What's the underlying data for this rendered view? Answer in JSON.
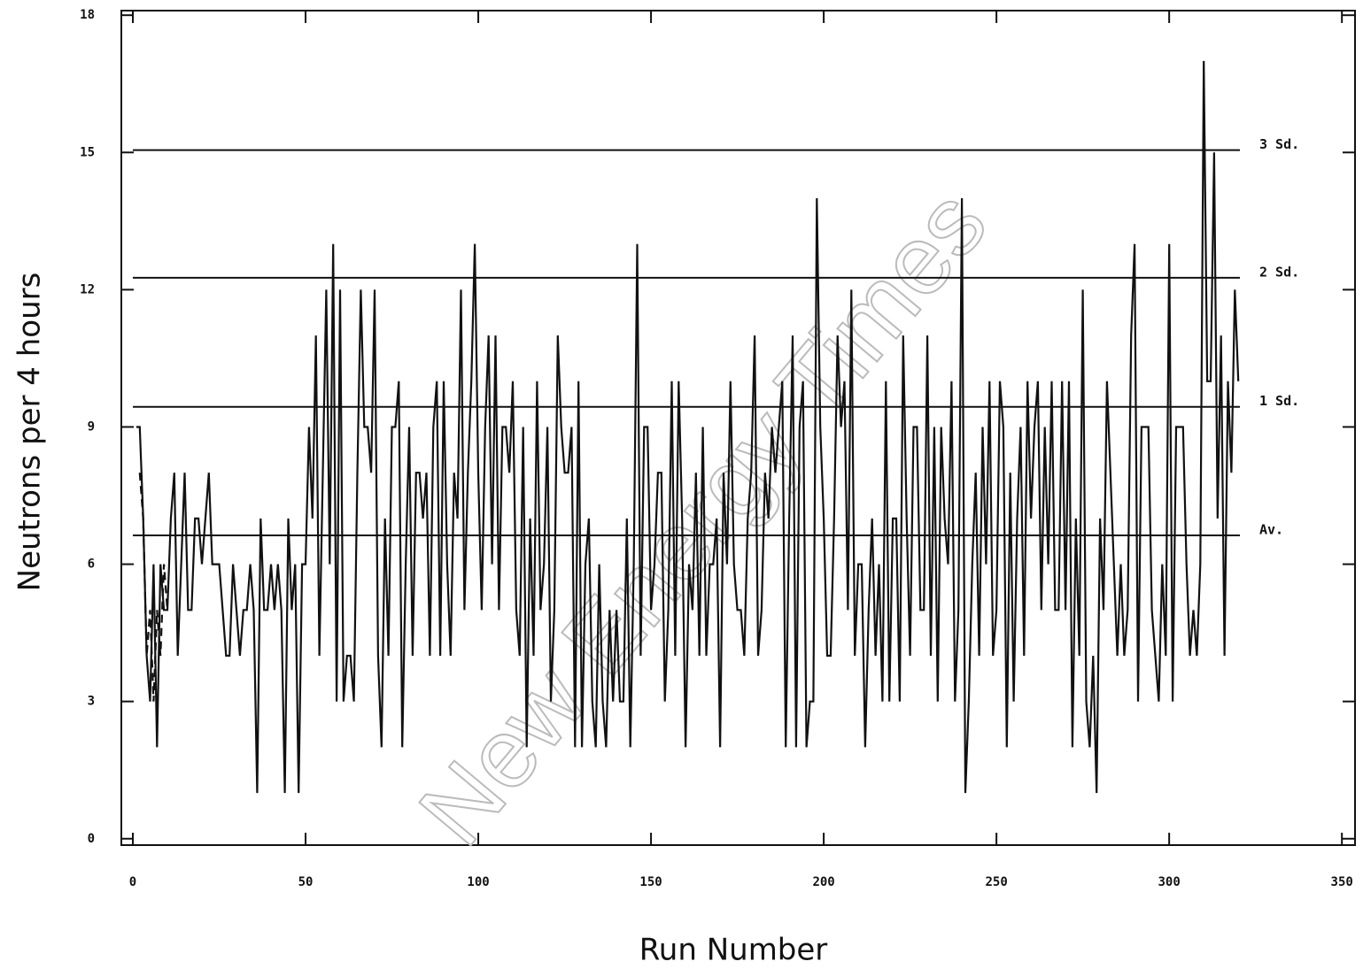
{
  "chart_data": {
    "type": "line",
    "xlabel": "Run Number",
    "ylabel": "Neutrons per 4 hours",
    "watermark": "New Energy Times",
    "xlim": [
      -3.33,
      353.8
    ],
    "ylim": [
      -0.14,
      18.1
    ],
    "xticks": [
      0,
      50,
      100,
      150,
      200,
      250,
      300,
      350
    ],
    "yticks": [
      0,
      3,
      6,
      9,
      12,
      15,
      18
    ],
    "hlines": [
      {
        "value": 15.05,
        "label": "3 Sd."
      },
      {
        "value": 12.26,
        "label": "2 Sd."
      },
      {
        "value": 9.44,
        "label": "1 Sd."
      },
      {
        "value": 6.63,
        "label": "Av."
      }
    ],
    "series": [
      {
        "color": "#111",
        "dashed": true,
        "x": [
          2,
          3,
          4,
          5,
          6,
          7,
          8,
          9,
          10
        ],
        "values": [
          8,
          7,
          4,
          5,
          3,
          5,
          4,
          6,
          5
        ]
      },
      {
        "color": "#111",
        "dashed": false,
        "x": [
          1,
          2,
          3,
          4,
          5,
          6,
          7,
          8,
          9,
          10,
          11,
          12,
          13,
          14,
          15,
          16,
          17,
          18,
          19,
          20,
          21,
          22,
          23,
          24,
          25,
          26,
          27,
          28,
          29,
          30,
          31,
          32,
          33,
          34,
          35,
          36,
          37,
          38,
          39,
          40,
          41,
          42,
          43,
          44,
          45,
          46,
          47,
          48,
          49,
          50,
          51,
          52,
          53,
          54,
          55,
          56,
          57,
          58,
          59,
          60,
          61,
          62,
          63,
          64,
          65,
          66,
          67,
          68,
          69,
          70,
          71,
          72,
          73,
          74,
          75,
          76,
          77,
          78,
          79,
          80,
          81,
          82,
          83,
          84,
          85,
          86,
          87,
          88,
          89,
          90,
          91,
          92,
          93,
          94,
          95,
          96,
          97,
          98,
          99,
          100,
          101,
          102,
          103,
          104,
          105,
          106,
          107,
          108,
          109,
          110,
          111,
          112,
          113,
          114,
          115,
          116,
          117,
          118,
          119,
          120,
          121,
          122,
          123,
          124,
          125,
          126,
          127,
          128,
          129,
          130,
          131,
          132,
          133,
          134,
          135,
          136,
          137,
          138,
          139,
          140,
          141,
          142,
          143,
          144,
          145,
          146,
          147,
          148,
          149,
          150,
          151,
          152,
          153,
          154,
          155,
          156,
          157,
          158,
          159,
          160,
          161,
          162,
          163,
          164,
          165,
          166,
          167,
          168,
          169,
          170,
          171,
          172,
          173,
          174,
          175,
          176,
          177,
          178,
          179,
          180,
          181,
          182,
          183,
          184,
          185,
          186,
          187,
          188,
          189,
          190,
          191,
          192,
          193,
          194,
          195,
          196,
          197,
          198,
          199,
          200,
          201,
          202,
          203,
          204,
          205,
          206,
          207,
          208,
          209,
          210,
          211,
          212,
          213,
          214,
          215,
          216,
          217,
          218,
          219,
          220,
          221,
          222,
          223,
          224,
          225,
          226,
          227,
          228,
          229,
          230,
          231,
          232,
          233,
          234,
          235,
          236,
          237,
          238,
          239,
          240,
          241,
          242,
          243,
          244,
          245,
          246,
          247,
          248,
          249,
          250,
          251,
          252,
          253,
          254,
          255,
          256,
          257,
          258,
          259,
          260,
          261,
          262,
          263,
          264,
          265,
          266,
          267,
          268,
          269,
          270,
          271,
          272,
          273,
          274,
          275,
          276,
          277,
          278,
          279,
          280,
          281,
          282,
          283,
          284,
          285,
          286,
          287,
          288,
          289,
          290,
          291,
          292,
          293,
          294,
          295,
          296,
          297,
          298,
          299,
          300,
          301,
          302,
          303,
          304,
          305,
          306,
          307,
          308,
          309,
          310,
          311,
          312,
          313,
          314,
          315,
          316,
          317,
          318,
          319,
          320
        ],
        "values": [
          9,
          9,
          7,
          4,
          3,
          6,
          2,
          6,
          5,
          5,
          7,
          8,
          4,
          6,
          8,
          5,
          5,
          7,
          7,
          6,
          7,
          8,
          6,
          6,
          6,
          5,
          4,
          4,
          6,
          5,
          4,
          5,
          5,
          6,
          5,
          1,
          7,
          5,
          5,
          6,
          5,
          6,
          5,
          1,
          7,
          5,
          6,
          1,
          6,
          6,
          9,
          7,
          11,
          4,
          8,
          12,
          6,
          13,
          3,
          12,
          3,
          4,
          4,
          3,
          8,
          12,
          9,
          9,
          8,
          12,
          4,
          2,
          7,
          4,
          9,
          9,
          10,
          2,
          6,
          9,
          4,
          8,
          8,
          7,
          8,
          4,
          9,
          10,
          4,
          10,
          6,
          4,
          8,
          7,
          12,
          5,
          8,
          10,
          13,
          8,
          5,
          9,
          11,
          6,
          11,
          5,
          9,
          9,
          8,
          10,
          5,
          4,
          9,
          2,
          7,
          4,
          10,
          5,
          6,
          9,
          3,
          5,
          11,
          9,
          8,
          8,
          9,
          2,
          10,
          2,
          6,
          7,
          3,
          2,
          6,
          3,
          2,
          5,
          3,
          5,
          3,
          3,
          7,
          2,
          6,
          13,
          4,
          9,
          9,
          5,
          6,
          8,
          8,
          3,
          5,
          10,
          4,
          10,
          7,
          2,
          6,
          5,
          8,
          4,
          9,
          4,
          6,
          6,
          7,
          2,
          8,
          6,
          10,
          6,
          5,
          5,
          4,
          7,
          8,
          11,
          4,
          5,
          8,
          7,
          9,
          8,
          9,
          10,
          2,
          7,
          11,
          2,
          9,
          10,
          2,
          3,
          3,
          14,
          9,
          7,
          4,
          4,
          7,
          11,
          9,
          10,
          5,
          12,
          4,
          6,
          6,
          2,
          5,
          7,
          4,
          6,
          3,
          10,
          3,
          7,
          7,
          3,
          11,
          7,
          4,
          9,
          9,
          5,
          5,
          11,
          4,
          9,
          3,
          9,
          7,
          6,
          10,
          3,
          5,
          14,
          1,
          3,
          6,
          8,
          4,
          9,
          6,
          10,
          4,
          5,
          10,
          9,
          2,
          8,
          3,
          7,
          9,
          4,
          10,
          7,
          9,
          10,
          5,
          9,
          6,
          10,
          5,
          5,
          10,
          5,
          10,
          2,
          7,
          4,
          12,
          3,
          2,
          4,
          1,
          7,
          5,
          10,
          8,
          6,
          4,
          6,
          4,
          5,
          11,
          13,
          3,
          9,
          9,
          9,
          5,
          4,
          3,
          6,
          4,
          13,
          3,
          9,
          9,
          9,
          6,
          4,
          5,
          4,
          6,
          17,
          10,
          10,
          15,
          7,
          11,
          4,
          10,
          8,
          12,
          10
        ]
      }
    ]
  }
}
